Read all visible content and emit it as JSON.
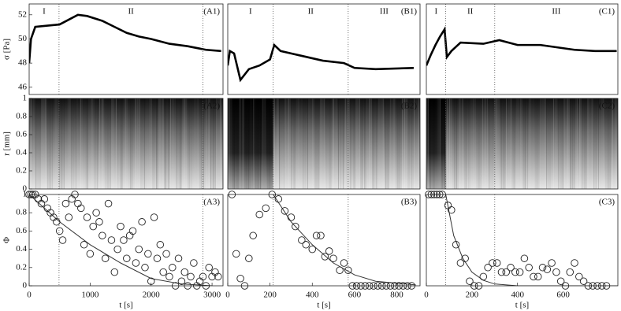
{
  "chart_data": [
    {
      "type": "line",
      "panel_label": "(A1)",
      "ylabel": "σ [Pa]",
      "regions": [
        "I",
        "II"
      ],
      "boundaries": [
        490,
        2850
      ],
      "xlim": [
        0,
        3180
      ],
      "ylim": [
        45.4,
        52.9
      ],
      "yticks": [
        46,
        48,
        50,
        52
      ],
      "x": [
        0,
        30,
        100,
        300,
        500,
        650,
        800,
        950,
        1200,
        1400,
        1600,
        1800,
        2000,
        2300,
        2600,
        2900,
        3150
      ],
      "values": [
        48,
        50,
        51,
        51.1,
        51.2,
        51.6,
        52,
        51.9,
        51.5,
        51,
        50.5,
        50.2,
        50,
        49.6,
        49.4,
        49.1,
        49
      ],
      "color": "#000"
    },
    {
      "type": "line",
      "panel_label": "(B1)",
      "regions": [
        "I",
        "II",
        "III"
      ],
      "boundaries": [
        215,
        570
      ],
      "xlim": [
        0,
        910
      ],
      "ylim": [
        45.4,
        52.9
      ],
      "x": [
        0,
        10,
        30,
        60,
        100,
        150,
        200,
        220,
        250,
        300,
        350,
        450,
        550,
        600,
        700,
        880
      ],
      "values": [
        47.8,
        49,
        48.8,
        46.6,
        47.5,
        47.8,
        48.3,
        49.5,
        49,
        48.8,
        48.6,
        48.2,
        48,
        47.6,
        47.5,
        47.6
      ],
      "color": "#000"
    },
    {
      "type": "line",
      "panel_label": "(C1)",
      "regions": [
        "I",
        "II",
        "III"
      ],
      "boundaries": [
        85,
        300
      ],
      "xlim": [
        0,
        840
      ],
      "ylim": [
        45.4,
        52.9
      ],
      "x": [
        0,
        20,
        40,
        60,
        80,
        90,
        110,
        150,
        250,
        320,
        400,
        500,
        650,
        740,
        835
      ],
      "values": [
        47.8,
        48.7,
        49.5,
        50.2,
        50.8,
        48.5,
        49,
        49.7,
        49.6,
        49.9,
        49.5,
        49.5,
        49.1,
        49,
        49
      ],
      "color": "#000"
    },
    {
      "type": "heatmap",
      "panel_label": "(A2)",
      "ylabel": "r [mm]",
      "boundaries": [
        490,
        2850
      ],
      "xlim": [
        0,
        3180
      ],
      "ylim": [
        0,
        1
      ],
      "yticks": [
        0,
        0.2,
        0.4,
        0.6,
        0.8,
        1
      ]
    },
    {
      "type": "heatmap",
      "panel_label": "(B2)",
      "boundaries": [
        215,
        570
      ],
      "xlim": [
        0,
        910
      ],
      "ylim": [
        0,
        1
      ]
    },
    {
      "type": "heatmap",
      "panel_label": "(C2)",
      "boundaries": [
        85,
        300
      ],
      "xlim": [
        0,
        840
      ],
      "ylim": [
        0,
        1
      ]
    },
    {
      "type": "scatter",
      "panel_label": "(A3)",
      "ylabel": "Φ",
      "xlabel": "t [s]",
      "boundaries": [
        490,
        2850
      ],
      "xlim": [
        0,
        3180
      ],
      "ylim": [
        0,
        1
      ],
      "yticks": [
        0,
        0.2,
        0.4,
        0.6,
        0.8,
        1
      ],
      "xticks": [
        0,
        1000,
        2000,
        3000
      ],
      "x": [
        0,
        30,
        60,
        100,
        150,
        200,
        250,
        300,
        350,
        400,
        450,
        500,
        550,
        600,
        650,
        700,
        750,
        800,
        850,
        900,
        950,
        1000,
        1050,
        1100,
        1150,
        1200,
        1250,
        1300,
        1350,
        1400,
        1450,
        1500,
        1550,
        1600,
        1650,
        1700,
        1750,
        1800,
        1850,
        1900,
        1950,
        2000,
        2050,
        2100,
        2150,
        2200,
        2250,
        2300,
        2350,
        2400,
        2450,
        2500,
        2550,
        2600,
        2650,
        2700,
        2750,
        2800,
        2850,
        2900,
        2950,
        3000,
        3050,
        3100
      ],
      "values": [
        1,
        1,
        1,
        1,
        0.95,
        0.9,
        0.95,
        0.85,
        0.8,
        0.75,
        0.7,
        0.6,
        0.5,
        0.9,
        0.75,
        0.95,
        1,
        0.9,
        0.85,
        0.45,
        0.75,
        0.35,
        0.65,
        0.8,
        0.7,
        0.55,
        0.3,
        0.9,
        0.5,
        0.15,
        0.4,
        0.65,
        0.5,
        0.3,
        0.55,
        0.6,
        0.25,
        0.4,
        0.7,
        0.2,
        0.35,
        0.05,
        0.75,
        0.3,
        0.45,
        0.15,
        0.35,
        0.1,
        0.2,
        0,
        0.3,
        0.05,
        0.15,
        0,
        0.1,
        0.25,
        0,
        0.05,
        0.1,
        0,
        0.2,
        0.1,
        0.15,
        0.1
      ],
      "fit_x": [
        0,
        500,
        1000,
        1500,
        2000,
        2500,
        3000
      ],
      "fit_values": [
        1,
        0.7,
        0.45,
        0.25,
        0.08,
        0.02,
        0
      ]
    },
    {
      "type": "scatter",
      "panel_label": "(B3)",
      "xlabel": "t [s]",
      "boundaries": [
        215,
        570
      ],
      "xlim": [
        0,
        910
      ],
      "ylim": [
        0,
        1
      ],
      "xticks": [
        0,
        200,
        400,
        600,
        800
      ],
      "x": [
        20,
        40,
        60,
        80,
        100,
        120,
        150,
        180,
        210,
        240,
        270,
        300,
        320,
        350,
        370,
        400,
        420,
        440,
        460,
        480,
        500,
        530,
        550,
        570,
        590,
        610,
        630,
        650,
        670,
        690,
        710,
        730,
        750,
        770,
        790,
        810,
        830,
        850,
        870
      ],
      "values": [
        1,
        0.35,
        0.08,
        0,
        0.3,
        0.55,
        0.78,
        0.85,
        1,
        0.95,
        0.82,
        0.75,
        0.65,
        0.5,
        0.45,
        0.4,
        0.55,
        0.55,
        0.32,
        0.38,
        0.3,
        0.17,
        0.25,
        0.17,
        0,
        0,
        0,
        0,
        0,
        0,
        0,
        0,
        0,
        0,
        0,
        0,
        0,
        0,
        0
      ],
      "fit_x": [
        215,
        300,
        400,
        500,
        600,
        700,
        890
      ],
      "fit_values": [
        1,
        0.7,
        0.45,
        0.25,
        0.12,
        0.05,
        0.01
      ]
    },
    {
      "type": "scatter",
      "panel_label": "(C3)",
      "xlabel": "t [s]",
      "boundaries": [
        85,
        300
      ],
      "xlim": [
        0,
        840
      ],
      "ylim": [
        0,
        1
      ],
      "xticks": [
        0,
        200,
        400,
        600
      ],
      "x": [
        10,
        22,
        34,
        46,
        58,
        70,
        95,
        110,
        130,
        150,
        170,
        190,
        210,
        230,
        250,
        270,
        290,
        310,
        330,
        350,
        370,
        390,
        410,
        430,
        450,
        470,
        490,
        510,
        530,
        550,
        570,
        590,
        610,
        630,
        650,
        670,
        690,
        710,
        730,
        750,
        770,
        790
      ],
      "values": [
        1,
        1,
        1,
        1,
        1,
        1,
        0.88,
        0.83,
        0.45,
        0.25,
        0.3,
        0.05,
        0,
        0,
        0.1,
        0.2,
        0.25,
        0.25,
        0.15,
        0.15,
        0.2,
        0.15,
        0.15,
        0.3,
        0.2,
        0.1,
        0.1,
        0.2,
        0.18,
        0.25,
        0.15,
        0.05,
        0,
        0.15,
        0.25,
        0.1,
        0.05,
        0,
        0,
        0,
        0,
        0
      ],
      "fit_x": [
        85,
        120,
        160,
        200,
        250,
        300,
        400,
        840
      ],
      "fit_values": [
        1,
        0.55,
        0.3,
        0.15,
        0.06,
        0.02,
        0,
        0
      ]
    }
  ]
}
